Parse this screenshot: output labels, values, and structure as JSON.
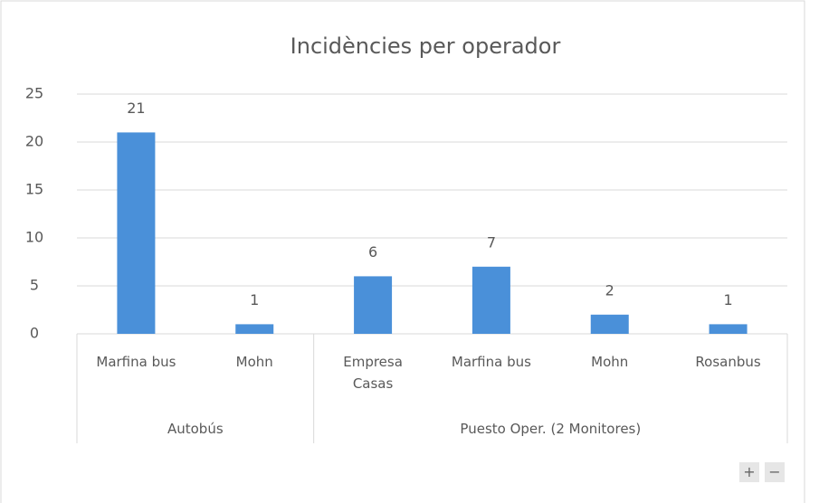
{
  "chart_data": {
    "type": "bar",
    "title": "Incidències per operador",
    "groups": [
      {
        "name": "Autobús",
        "categories": [
          "Marfina bus",
          "Mohn"
        ],
        "values": [
          21,
          1
        ]
      },
      {
        "name": "Puesto Oper. (2 Monitores)",
        "categories": [
          "Empresa Casas",
          "Marfina bus",
          "Mohn",
          "Rosanbus"
        ],
        "values": [
          6,
          7,
          2,
          1
        ]
      }
    ],
    "color": "#4a90d9",
    "ylim": [
      0,
      25
    ],
    "yticks": [
      0,
      5,
      10,
      15,
      20,
      25
    ],
    "grid": true,
    "data_labels": true
  },
  "controls": [
    "+",
    "−"
  ]
}
